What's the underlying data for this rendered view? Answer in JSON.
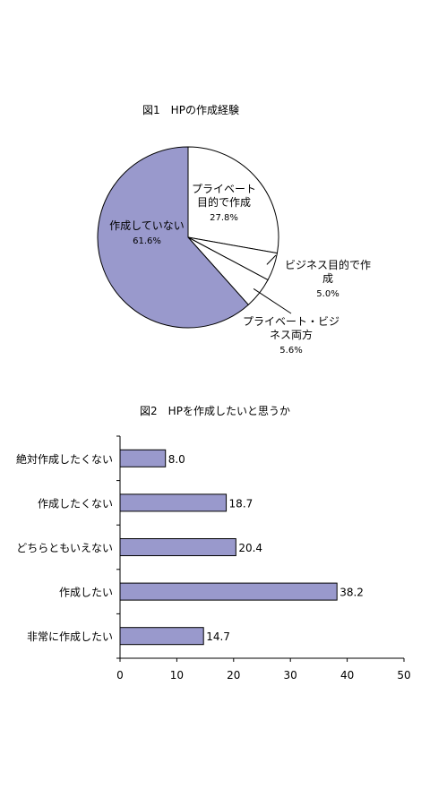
{
  "chart_data": [
    {
      "type": "pie",
      "title": "図1　HPの作成経験",
      "slices": [
        {
          "label": "プライベート目的で作成",
          "label_lines": [
            "プライベート",
            "目的で作成"
          ],
          "value": 27.8,
          "value_label": "27.8%",
          "color": "#ffffff"
        },
        {
          "label": "ビジネス目的で作成",
          "label_lines": [
            "ビジネス目的で作",
            "成"
          ],
          "value": 5.0,
          "value_label": "5.0%",
          "color": "#ffffff"
        },
        {
          "label": "プライベート・ビジネス両方",
          "label_lines": [
            "プライベート・ビジ",
            "ネス両方"
          ],
          "value": 5.6,
          "value_label": "5.6%",
          "color": "#ffffff"
        },
        {
          "label": "作成していない",
          "label_lines": [
            "作成していない"
          ],
          "value": 61.6,
          "value_label": "61.6%",
          "color": "#9999cc"
        }
      ]
    },
    {
      "type": "bar",
      "orientation": "horizontal",
      "title": "図2　HPを作成したいと思うか",
      "categories": [
        "絶対作成したくない",
        "作成したくない",
        "どちらともいえない",
        "作成したい",
        "非常に作成したい"
      ],
      "values": [
        8.0,
        18.7,
        20.4,
        38.2,
        14.7
      ],
      "value_labels": [
        "8.0",
        "18.7",
        "20.4",
        "38.2",
        "14.7"
      ],
      "xlim": [
        0,
        50
      ],
      "xticks": [
        "0",
        "10",
        "20",
        "30",
        "40",
        "50"
      ],
      "bar_color": "#9999cc",
      "grid": false
    }
  ]
}
